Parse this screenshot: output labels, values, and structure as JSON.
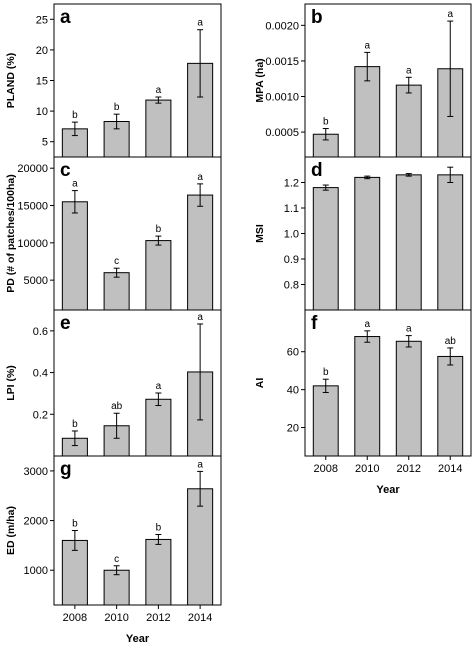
{
  "figure": {
    "xlabel": "Year"
  },
  "colors": {
    "bar": "#c0c0c0",
    "bar_stroke": "#000000",
    "axis": "#000000",
    "background": "#ffffff"
  },
  "chart_data": [
    {
      "panel": "a",
      "type": "bar",
      "categories": [
        "2008",
        "2010",
        "2012",
        "2014"
      ],
      "values": [
        7.1,
        8.3,
        11.8,
        17.8
      ],
      "errors": [
        1.1,
        1.2,
        0.5,
        5.5
      ],
      "significance": [
        "b",
        "b",
        "a",
        "a"
      ],
      "ylabel": "PLAND (%)",
      "xlabel": "",
      "ylim": [
        2.5,
        27.5
      ],
      "yticks": [
        5,
        10,
        15,
        20,
        25
      ],
      "ytick_labels": [
        "5",
        "10",
        "15",
        "20",
        "25"
      ],
      "show_xticklabels": false
    },
    {
      "panel": "b",
      "type": "bar",
      "categories": [
        "2008",
        "2010",
        "2012",
        "2014"
      ],
      "values": [
        0.00047,
        0.00142,
        0.00116,
        0.00139
      ],
      "errors": [
        8e-05,
        0.0002,
        0.00011,
        0.00067
      ],
      "significance": [
        "b",
        "a",
        "a",
        "a"
      ],
      "ylabel": "MPA (ha)",
      "xlabel": "",
      "ylim": [
        0.00015,
        0.0023
      ],
      "yticks": [
        0.0005,
        0.001,
        0.0015,
        0.002
      ],
      "ytick_labels": [
        "0.0005",
        "0.0010",
        "0.0015",
        "0.0020"
      ],
      "show_xticklabels": false
    },
    {
      "panel": "c",
      "type": "bar",
      "categories": [
        "2008",
        "2010",
        "2012",
        "2014"
      ],
      "values": [
        15500,
        6000,
        10300,
        16400
      ],
      "errors": [
        1500,
        600,
        600,
        1500
      ],
      "significance": [
        "a",
        "c",
        "b",
        "a"
      ],
      "ylabel": "PD (# of patches/100ha)",
      "xlabel": "",
      "ylim": [
        1000,
        21500
      ],
      "yticks": [
        5000,
        10000,
        15000,
        20000
      ],
      "ytick_labels": [
        "5000",
        "10000",
        "15000",
        "20000"
      ],
      "show_xticklabels": false
    },
    {
      "panel": "d",
      "type": "bar",
      "categories": [
        "2008",
        "2010",
        "2012",
        "2014"
      ],
      "values": [
        1.18,
        1.22,
        1.23,
        1.23
      ],
      "errors": [
        0.01,
        0.005,
        0.005,
        0.03
      ],
      "significance": [
        "",
        "",
        "",
        ""
      ],
      "ylabel": "MSI",
      "xlabel": "",
      "ylim": [
        0.7,
        1.3
      ],
      "yticks": [
        0.8,
        0.9,
        1.0,
        1.1,
        1.2
      ],
      "ytick_labels": [
        "0.8",
        "0.9",
        "1.0",
        "1.1",
        "1.2"
      ],
      "show_xticklabels": false
    },
    {
      "panel": "e",
      "type": "bar",
      "categories": [
        "2008",
        "2010",
        "2012",
        "2014"
      ],
      "values": [
        0.085,
        0.145,
        0.272,
        0.403
      ],
      "errors": [
        0.035,
        0.06,
        0.03,
        0.23
      ],
      "significance": [
        "b",
        "ab",
        "a",
        "a"
      ],
      "ylabel": "LPI (%)",
      "xlabel": "",
      "ylim": [
        0.0,
        0.7
      ],
      "yticks": [
        0.2,
        0.4,
        0.6
      ],
      "ytick_labels": [
        "0.2",
        "0.4",
        "0.6"
      ],
      "show_xticklabels": false
    },
    {
      "panel": "f",
      "type": "bar",
      "categories": [
        "2008",
        "2010",
        "2012",
        "2014"
      ],
      "values": [
        42,
        68,
        65.5,
        57.5
      ],
      "errors": [
        3.5,
        3,
        3,
        4.5
      ],
      "significance": [
        "b",
        "a",
        "a",
        "ab"
      ],
      "ylabel": "AI",
      "xlabel": "Year",
      "ylim": [
        5,
        82
      ],
      "yticks": [
        20,
        40,
        60
      ],
      "ytick_labels": [
        "20",
        "40",
        "60"
      ],
      "show_xticklabels": true
    },
    {
      "panel": "g",
      "type": "bar",
      "categories": [
        "2008",
        "2010",
        "2012",
        "2014"
      ],
      "values": [
        1600,
        1000,
        1620,
        2640
      ],
      "errors": [
        200,
        90,
        100,
        350
      ],
      "significance": [
        "b",
        "c",
        "b",
        "a"
      ],
      "ylabel": "ED (m/ha)",
      "xlabel": "Year",
      "ylim": [
        300,
        3300
      ],
      "yticks": [
        1000,
        2000,
        3000
      ],
      "ytick_labels": [
        "1000",
        "2000",
        "3000"
      ],
      "show_xticklabels": true
    }
  ]
}
